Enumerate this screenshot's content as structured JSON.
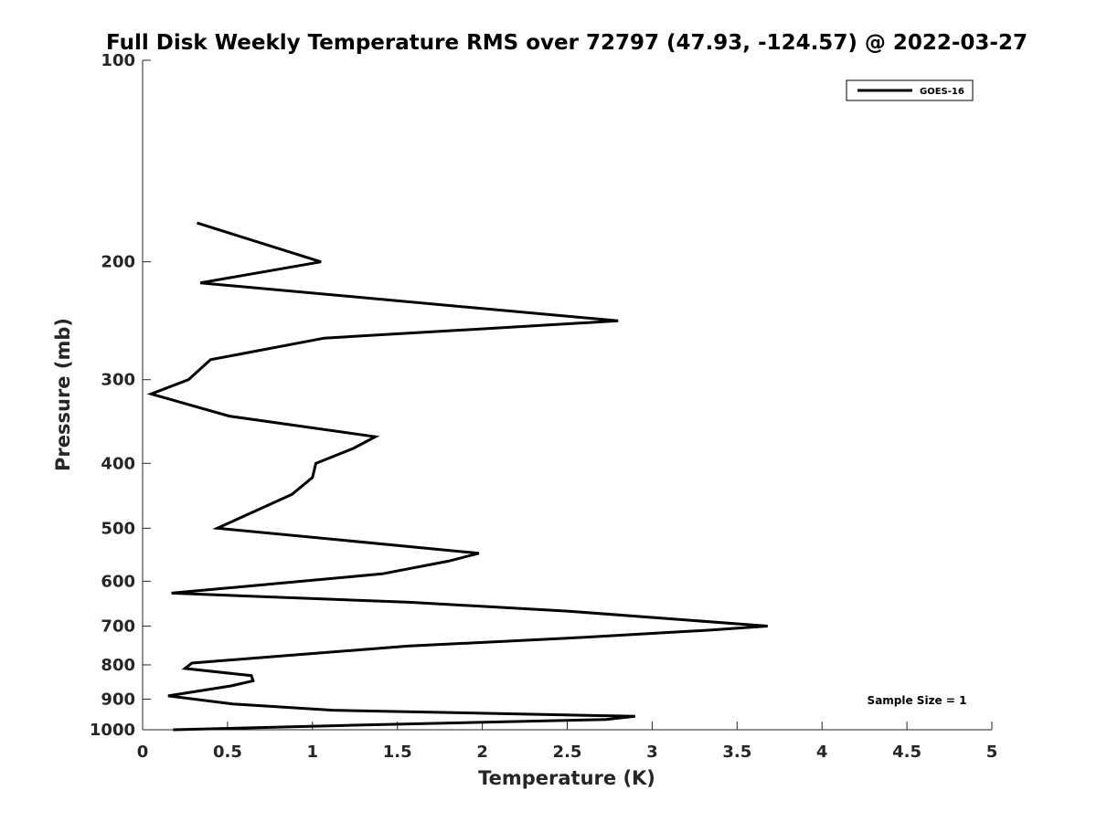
{
  "chart_data": {
    "type": "line",
    "title": "Full Disk Weekly Temperature RMS over 72797 (47.93, -124.57) @ 2022-03-27",
    "xlabel": "Temperature (K)",
    "ylabel": "Pressure (mb)",
    "xlim": [
      0,
      5
    ],
    "ylim": [
      1000,
      100
    ],
    "yscale": "log",
    "x_ticks": [
      "0",
      "0.5",
      "1",
      "1.5",
      "2",
      "2.5",
      "3",
      "3.5",
      "4",
      "4.5",
      "5"
    ],
    "y_ticks": [
      "100",
      "200",
      "300",
      "400",
      "500",
      "600",
      "700",
      "800",
      "900",
      "1000"
    ],
    "grid": false,
    "legend_position": "top-right",
    "annotation": "Sample Size = 1",
    "series": [
      {
        "name": "GOES-16",
        "color": "#000000",
        "points": [
          {
            "x": 0.32,
            "y": 175
          },
          {
            "x": 1.05,
            "y": 200
          },
          {
            "x": 0.34,
            "y": 215
          },
          {
            "x": 2.8,
            "y": 245
          },
          {
            "x": 1.07,
            "y": 260
          },
          {
            "x": 0.4,
            "y": 280
          },
          {
            "x": 0.27,
            "y": 300
          },
          {
            "x": 0.05,
            "y": 315
          },
          {
            "x": 0.51,
            "y": 340
          },
          {
            "x": 1.37,
            "y": 365
          },
          {
            "x": 1.24,
            "y": 380
          },
          {
            "x": 1.02,
            "y": 400
          },
          {
            "x": 1.0,
            "y": 420
          },
          {
            "x": 0.88,
            "y": 445
          },
          {
            "x": 0.44,
            "y": 500
          },
          {
            "x": 1.98,
            "y": 545
          },
          {
            "x": 1.8,
            "y": 560
          },
          {
            "x": 1.41,
            "y": 585
          },
          {
            "x": 0.17,
            "y": 625
          },
          {
            "x": 1.57,
            "y": 645
          },
          {
            "x": 2.5,
            "y": 665
          },
          {
            "x": 3.68,
            "y": 700
          },
          {
            "x": 3.33,
            "y": 710
          },
          {
            "x": 2.5,
            "y": 730
          },
          {
            "x": 1.56,
            "y": 750
          },
          {
            "x": 0.84,
            "y": 775
          },
          {
            "x": 0.29,
            "y": 795
          },
          {
            "x": 0.25,
            "y": 810
          },
          {
            "x": 0.64,
            "y": 830
          },
          {
            "x": 0.65,
            "y": 845
          },
          {
            "x": 0.52,
            "y": 860
          },
          {
            "x": 0.15,
            "y": 890
          },
          {
            "x": 0.53,
            "y": 915
          },
          {
            "x": 1.12,
            "y": 935
          },
          {
            "x": 2.9,
            "y": 955
          },
          {
            "x": 2.73,
            "y": 965
          },
          {
            "x": 1.2,
            "y": 985
          },
          {
            "x": 0.18,
            "y": 1000
          }
        ]
      }
    ]
  }
}
